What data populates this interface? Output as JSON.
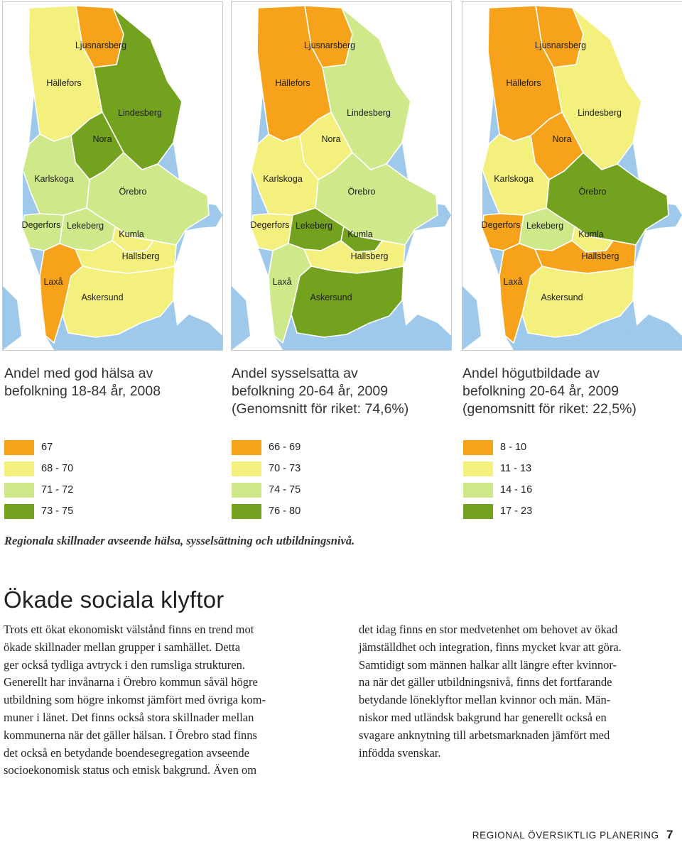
{
  "colors": {
    "orange": "#f7a21b",
    "yellow": "#f4f07e",
    "lightgreen": "#cfe98a",
    "darkgreen": "#73a21e",
    "water": "#9fc9ea"
  },
  "maps": [
    {
      "title": [
        "Andel med god hälsa av",
        "befolkning 18-84 år, 2008"
      ],
      "legend": [
        {
          "label": "67",
          "color": "orange"
        },
        {
          "label": "68 - 70",
          "color": "yellow"
        },
        {
          "label": "71 - 72",
          "color": "lightgreen"
        },
        {
          "label": "73 - 75",
          "color": "darkgreen"
        }
      ],
      "fills": {
        "ljusnarsberg": "orange",
        "hallefors": "yellow",
        "lindesberg": "darkgreen",
        "nora": "darkgreen",
        "karlskoga": "lightgreen",
        "orebro": "lightgreen",
        "degerfors": "lightgreen",
        "lekeberg": "lightgreen",
        "kumla": "yellow",
        "hallsberg": "yellow",
        "laxa": "orange",
        "askersund": "yellow"
      }
    },
    {
      "title": [
        "Andel sysselsatta av",
        "befolkning 20-64 år, 2009",
        "(Genomsnitt för riket: 74,6%)"
      ],
      "legend": [
        {
          "label": "66 - 69",
          "color": "orange"
        },
        {
          "label": "70 - 73",
          "color": "yellow"
        },
        {
          "label": "74 - 75",
          "color": "lightgreen"
        },
        {
          "label": "76 - 80",
          "color": "darkgreen"
        }
      ],
      "fills": {
        "ljusnarsberg": "orange",
        "hallefors": "orange",
        "lindesberg": "lightgreen",
        "nora": "yellow",
        "karlskoga": "yellow",
        "orebro": "lightgreen",
        "degerfors": "yellow",
        "lekeberg": "darkgreen",
        "kumla": "darkgreen",
        "hallsberg": "yellow",
        "laxa": "lightgreen",
        "askersund": "darkgreen"
      }
    },
    {
      "title": [
        "Andel högutbildade av",
        "befolkning 20-64 år, 2009",
        "(genomsnitt för riket: 22,5%)"
      ],
      "legend": [
        {
          "label": "8 - 10",
          "color": "orange"
        },
        {
          "label": "11 - 13",
          "color": "yellow"
        },
        {
          "label": "14 - 16",
          "color": "lightgreen"
        },
        {
          "label": "17 - 23",
          "color": "darkgreen"
        }
      ],
      "fills": {
        "ljusnarsberg": "orange",
        "hallefors": "orange",
        "lindesberg": "yellow",
        "nora": "orange",
        "karlskoga": "yellow",
        "orebro": "darkgreen",
        "degerfors": "orange",
        "lekeberg": "lightgreen",
        "kumla": "yellow",
        "hallsberg": "orange",
        "laxa": "orange",
        "askersund": "yellow"
      }
    }
  ],
  "municipality_labels": {
    "ljusnarsberg": "Ljusnarsberg",
    "hallefors": "Hällefors",
    "lindesberg": "Lindesberg",
    "nora": "Nora",
    "karlskoga": "Karlskoga",
    "orebro": "Örebro",
    "degerfors": "Degerfors",
    "lekeberg": "Lekeberg",
    "kumla": "Kumla",
    "hallsberg": "Hallsberg",
    "laxa": "Laxå",
    "askersund": "Askersund"
  },
  "caption": "Regionala skillnader avseende hälsa, sysselsättning och utbildningsnivå.",
  "heading": "Ökade sociala klyftor",
  "body_left": [
    "Trots ett ökat ekonomiskt välstånd finns en trend mot",
    "ökade skillnader mellan grupper i samhället. Detta",
    "ger också tydliga avtryck i den rumsliga strukturen.",
    "Generellt har invånarna i Örebro kommun såväl högre",
    "utbildning som högre inkomst jämfört med övriga kom-",
    "muner i länet. Det finns också stora skillnader mellan",
    "kommunerna när det gäller hälsan. I Örebro stad finns",
    "det också en betydande boendesegregation avseende",
    "socioekonomisk status och etnisk bakgrund. Även om"
  ],
  "body_right": [
    "det idag finns en stor medvetenhet om behovet av ökad",
    "jämställdhet och integration, finns mycket kvar att göra.",
    "Samtidigt som männen halkar allt längre efter kvinnor-",
    "na när det gäller utbildningsnivå, finns det fortfarande",
    "betydande löneklyftor mellan kvinnor och män. Män-",
    "niskor med utländsk bakgrund har generellt också en",
    "svagare anknytning till arbetsmarknaden jämfört med",
    "infödda svenskar."
  ],
  "footer": {
    "text": "Regional översiktlig planering",
    "page": "7"
  }
}
